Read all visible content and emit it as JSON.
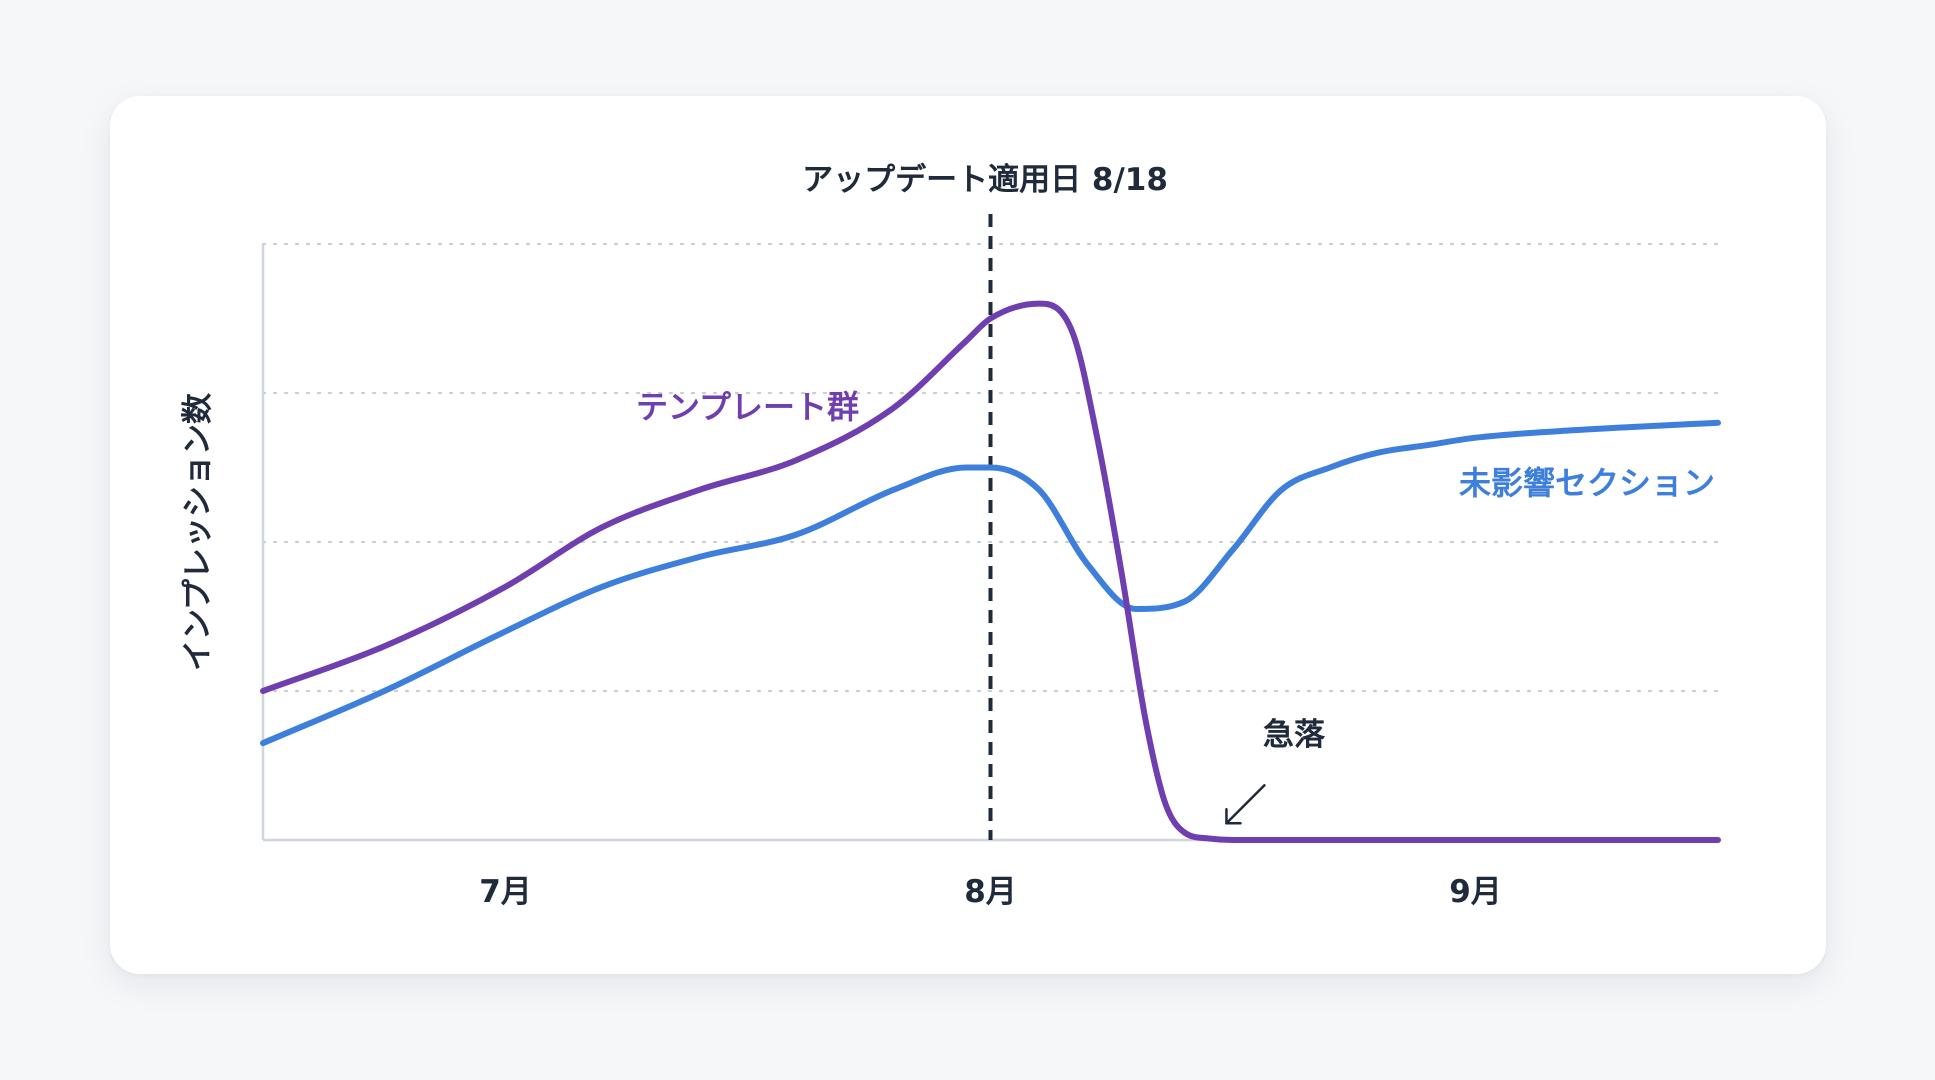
{
  "chart_data": {
    "type": "line",
    "title": "",
    "xlabel": "",
    "ylabel": "インプレッション数",
    "x_tick_labels": [
      "7月",
      "8月",
      "9月"
    ],
    "x_tick_positions": [
      0,
      1,
      2
    ],
    "xlim": [
      -0.5,
      2.5
    ],
    "ylim": [
      0,
      4
    ],
    "grid": true,
    "y_tick_labels_shown": false,
    "colors": {
      "template": "#6f3fb0",
      "unaffected": "#3d7fdb",
      "marker": "#1f2a3a",
      "axis": "#d0d5de",
      "grid": "#c9ced6"
    },
    "event_marker": {
      "x": 1.0,
      "label": "アップデート適用日 8/18"
    },
    "series": [
      {
        "name": "テンプレート群",
        "key": "template",
        "x": [
          -0.5,
          -0.25,
          0.0,
          0.2,
          0.4,
          0.6,
          0.8,
          0.95,
          1.0,
          1.1,
          1.17,
          1.22,
          1.27,
          1.32,
          1.36,
          1.4,
          1.45,
          1.5,
          1.6,
          1.8,
          2.0,
          2.2,
          2.5
        ],
        "y": [
          1.0,
          1.3,
          1.7,
          2.1,
          2.35,
          2.55,
          2.9,
          3.35,
          3.5,
          3.6,
          3.4,
          2.7,
          1.8,
          0.8,
          0.25,
          0.05,
          0.01,
          0.0,
          0.0,
          0.0,
          0.0,
          0.0,
          0.0
        ],
        "label_position": "upper-left"
      },
      {
        "name": "未影響セクション",
        "key": "unaffected",
        "x": [
          -0.5,
          -0.25,
          0.0,
          0.2,
          0.4,
          0.6,
          0.8,
          0.95,
          1.0,
          1.1,
          1.2,
          1.3,
          1.4,
          1.5,
          1.6,
          1.7,
          1.8,
          1.9,
          2.0,
          2.2,
          2.5
        ],
        "y": [
          0.65,
          1.0,
          1.4,
          1.7,
          1.9,
          2.05,
          2.35,
          2.5,
          2.5,
          2.35,
          1.85,
          1.55,
          1.6,
          1.95,
          2.35,
          2.5,
          2.6,
          2.65,
          2.7,
          2.75,
          2.8
        ],
        "label_position": "right"
      }
    ],
    "annotations": [
      {
        "text": "急落",
        "x": 1.47,
        "y": 0.3,
        "arrow": true
      }
    ]
  }
}
